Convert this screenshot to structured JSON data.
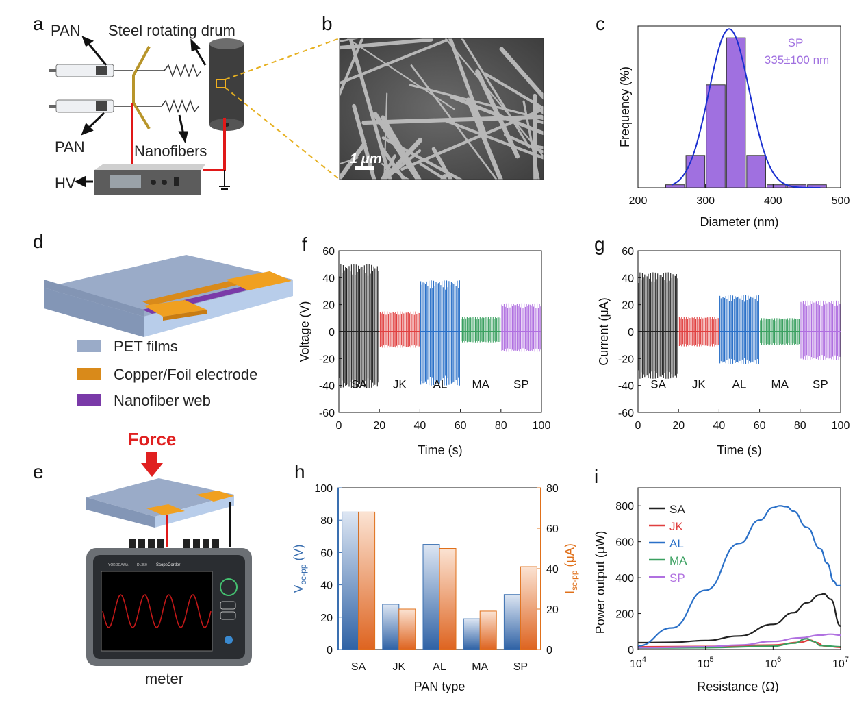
{
  "panels": {
    "a": "a",
    "b": "b",
    "c": "c",
    "d": "d",
    "e": "e",
    "f": "f",
    "g": "g",
    "h": "h",
    "i": "i"
  },
  "panel_a": {
    "pan_top": "PAN",
    "pan_bottom": "PAN",
    "drum": "Steel rotating drum",
    "nanofibers": "Nanofibers",
    "hv": "HV"
  },
  "panel_b": {
    "scale": "1 μm"
  },
  "panel_d": {
    "legend": [
      "PET films",
      "Copper/Foil electrode",
      "Nanofiber web"
    ],
    "legend_colors": [
      "#9aabc8",
      "#d98a1a",
      "#7a3aa8"
    ]
  },
  "panel_e": {
    "force": "Force",
    "meter": "meter",
    "brand": "YOKOGAWA",
    "model": "DL350",
    "scope": "ScopeCorder"
  },
  "colors": {
    "SA": "#222222",
    "JK": "#e04040",
    "AL": "#2a70c8",
    "MA": "#3aa060",
    "SP": "#b070e0",
    "left_axis": "#3a6fb0",
    "right_axis": "#e0701a",
    "hist": "#a070e0",
    "fit": "#1a2fd0"
  },
  "chart_data": [
    {
      "id": "c",
      "type": "bar",
      "title": "",
      "xlabel": "Diameter (nm)",
      "ylabel": "Frequency (%)",
      "xlim": [
        200,
        500
      ],
      "ylim": [
        0,
        55
      ],
      "xticks": [
        "200",
        "300",
        "400",
        "500"
      ],
      "bin_centers": [
        255,
        285,
        315,
        345,
        375,
        405,
        435,
        465
      ],
      "values": [
        1,
        11,
        35,
        51,
        11,
        1,
        1,
        1
      ],
      "fit_mean": 335,
      "fit_sigma": 30,
      "fit_peak": 54,
      "annotation": [
        "SP",
        "335±100 nm"
      ]
    },
    {
      "id": "f",
      "type": "line",
      "xlabel": "Time (s)",
      "ylabel": "Voltage (V)",
      "xlim": [
        0,
        100
      ],
      "ylim": [
        -60,
        60
      ],
      "xticks": [
        "0",
        "20",
        "40",
        "60",
        "80",
        "100"
      ],
      "yticks": [
        "60",
        "40",
        "20",
        "0",
        "-20",
        "-40",
        "-60"
      ],
      "series": [
        {
          "name": "SA",
          "t_range": [
            0,
            20
          ],
          "max": 50,
          "min": -42
        },
        {
          "name": "JK",
          "t_range": [
            20,
            40
          ],
          "max": 15,
          "min": -12
        },
        {
          "name": "AL",
          "t_range": [
            40,
            60
          ],
          "max": 38,
          "min": -40
        },
        {
          "name": "MA",
          "t_range": [
            60,
            80
          ],
          "max": 11,
          "min": -8
        },
        {
          "name": "SP",
          "t_range": [
            80,
            100
          ],
          "max": 21,
          "min": -15
        }
      ]
    },
    {
      "id": "g",
      "type": "line",
      "xlabel": "Time (s)",
      "ylabel": "Current (μA)",
      "xlim": [
        0,
        100
      ],
      "ylim": [
        -60,
        60
      ],
      "xticks": [
        "0",
        "20",
        "40",
        "60",
        "80",
        "100"
      ],
      "yticks": [
        "60",
        "40",
        "20",
        "0",
        "-20",
        "-40",
        "-60"
      ],
      "series": [
        {
          "name": "SA",
          "t_range": [
            0,
            20
          ],
          "max": 44,
          "min": -35
        },
        {
          "name": "JK",
          "t_range": [
            20,
            40
          ],
          "max": 11,
          "min": -11
        },
        {
          "name": "AL",
          "t_range": [
            40,
            60
          ],
          "max": 27,
          "min": -24
        },
        {
          "name": "MA",
          "t_range": [
            60,
            80
          ],
          "max": 10,
          "min": -10
        },
        {
          "name": "SP",
          "t_range": [
            80,
            100
          ],
          "max": 23,
          "min": -21
        }
      ]
    },
    {
      "id": "h",
      "type": "bar",
      "xlabel": "PAN type",
      "ylabel_left": "V",
      "ylabel_left_sub": "oc-pp",
      "ylabel_left_unit": " (V)",
      "ylabel_right": "I",
      "ylabel_right_sub": "sc-pp",
      "ylabel_right_unit": " (μA)",
      "categories": [
        "SA",
        "JK",
        "AL",
        "MA",
        "SP"
      ],
      "ylim_left": [
        0,
        100
      ],
      "ylim_right": [
        0,
        80
      ],
      "yticks_left": [
        "0",
        "20",
        "40",
        "60",
        "80",
        "100"
      ],
      "yticks_right": [
        "0",
        "20",
        "40",
        "60",
        "80"
      ],
      "series": [
        {
          "name": "Voc-pp",
          "axis": "left",
          "values": [
            85,
            28,
            65,
            19,
            34
          ]
        },
        {
          "name": "Isc-pp",
          "axis": "right",
          "values": [
            68,
            20,
            50,
            19,
            41
          ]
        }
      ]
    },
    {
      "id": "i",
      "type": "line",
      "xlabel": "Resistance (Ω)",
      "ylabel": "Power output (μW)",
      "xscale": "log",
      "xlim_exp": [
        4,
        7
      ],
      "ylim": [
        0,
        900
      ],
      "xticks": [
        "10",
        "10",
        "10",
        "10"
      ],
      "xtick_exps": [
        "4",
        "5",
        "6",
        "7"
      ],
      "yticks": [
        "0",
        "200",
        "400",
        "600",
        "800"
      ],
      "legend": "top-left",
      "series": [
        {
          "name": "SA",
          "x_exp": [
            4,
            4.5,
            5,
            5.5,
            6,
            6.3,
            6.5,
            6.7,
            6.75,
            6.85,
            7
          ],
          "y": [
            38,
            40,
            50,
            75,
            140,
            205,
            260,
            305,
            310,
            280,
            130
          ]
        },
        {
          "name": "JK",
          "x_exp": [
            4,
            5,
            6,
            6.4,
            6.55,
            6.65,
            6.75,
            7
          ],
          "y": [
            15,
            17,
            25,
            40,
            52,
            38,
            20,
            12
          ]
        },
        {
          "name": "AL",
          "x_exp": [
            4,
            4.5,
            5,
            5.5,
            5.8,
            6,
            6.1,
            6.2,
            6.3,
            6.5,
            6.7,
            6.8,
            6.9,
            6.95,
            7
          ],
          "y": [
            20,
            120,
            330,
            590,
            720,
            790,
            800,
            795,
            770,
            680,
            560,
            480,
            380,
            355,
            355
          ]
        },
        {
          "name": "MA",
          "x_exp": [
            4,
            5,
            6,
            6.3,
            6.5,
            6.6,
            6.7,
            7
          ],
          "y": [
            8,
            10,
            18,
            35,
            60,
            45,
            22,
            15
          ]
        },
        {
          "name": "SP",
          "x_exp": [
            4,
            5,
            5.5,
            6,
            6.4,
            6.7,
            6.85,
            7
          ],
          "y": [
            10,
            15,
            25,
            45,
            65,
            80,
            85,
            80
          ]
        }
      ]
    }
  ]
}
